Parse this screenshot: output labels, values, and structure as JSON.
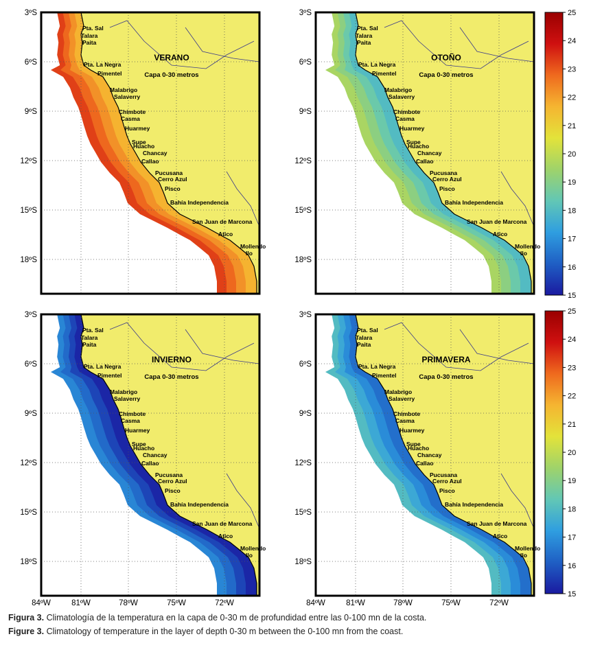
{
  "colors": {
    "land": "#f1ec6c",
    "ocean": "#ffffff",
    "grid": "#555555",
    "colormap": [
      "#1a1aa0",
      "#1f5fc4",
      "#2f9ee0",
      "#62c7b5",
      "#9fd36a",
      "#e3e33a",
      "#f5b531",
      "#ef6a1e",
      "#cf1010",
      "#9a0000"
    ]
  },
  "axis": {
    "lat_labels": [
      "3ºS",
      "6ºS",
      "9ºS",
      "12ºS",
      "15ºS",
      "18ºS"
    ],
    "lon_labels": [
      "84ºW",
      "81ºW",
      "78ºW",
      "75ºW",
      "72ºW"
    ]
  },
  "colorbar": {
    "min": 15,
    "max": 25,
    "ticks": [
      "15",
      "16",
      "17",
      "18",
      "19",
      "20",
      "21",
      "22",
      "23",
      "24",
      "25"
    ]
  },
  "panels": [
    {
      "season": "VERANO",
      "layer": "Capa 0-30 metros",
      "temp_level": 0.75
    },
    {
      "season": "OTOÑO",
      "layer": "Capa 0-30 metros",
      "temp_level": 0.38
    },
    {
      "season": "INVIERNO",
      "layer": "Capa 0-30 metros",
      "temp_level": 0.1
    },
    {
      "season": "PRIMAVERA",
      "layer": "Capa 0-30 metros",
      "temp_level": 0.22
    }
  ],
  "places": [
    "Pta. Sal",
    "Talara",
    "Paita",
    "Pta. La Negra",
    "Pimentel",
    "Malabrigo",
    "Salaverry",
    "Chimbote",
    "Casma",
    "Huarmey",
    "Supe",
    "Huacho",
    "Chancay",
    "Callao",
    "Pucusana",
    "Cerro Azul",
    "Pisco",
    "Bahía Independencia",
    "San Juan de Marcona",
    "Atico",
    "Mollendo",
    "Ilo"
  ],
  "caption": {
    "es_label": "Figura 3.",
    "es_text": " Climatología de la  temperatura en la capa de 0-30 m de profundidad entre las 0-100 mn de la costa.",
    "en_label": "Figure 3.",
    "en_text": " Climatology of temperature in the layer of depth 0-30 m between the 0-100 mn from the coast."
  }
}
